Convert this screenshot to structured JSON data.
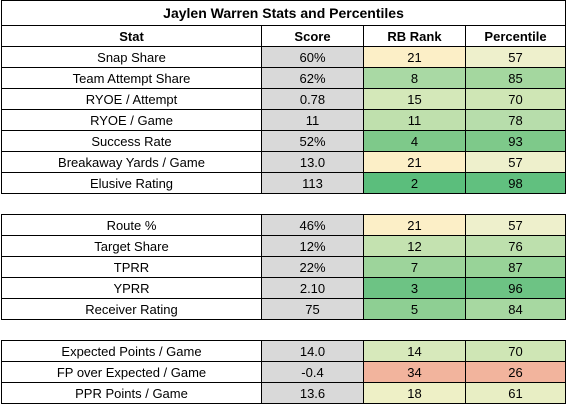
{
  "title": "Jaylen Warren Stats and Percentiles",
  "headers": [
    "Stat",
    "Score",
    "RB Rank",
    "Percentile"
  ],
  "groups": [
    [
      {
        "stat": "Snap Share",
        "score": "60%",
        "rank": "21",
        "pct": "57",
        "rank_bg": "#fcefc7",
        "pct_bg": "#eef0cc"
      },
      {
        "stat": "Team Attempt Share",
        "score": "62%",
        "rank": "8",
        "pct": "85",
        "rank_bg": "#a9d9a4",
        "pct_bg": "#a4d79f"
      },
      {
        "stat": "RYOE / Attempt",
        "score": "0.78",
        "rank": "15",
        "pct": "70",
        "rank_bg": "#d4e8b9",
        "pct_bg": "#cfe6b5"
      },
      {
        "stat": "RYOE / Game",
        "score": "11",
        "rank": "11",
        "pct": "78",
        "rank_bg": "#bfe0ad",
        "pct_bg": "#b7ddab"
      },
      {
        "stat": "Success Rate",
        "score": "52%",
        "rank": "4",
        "pct": "93",
        "rank_bg": "#7ec98a",
        "pct_bg": "#7ec98a"
      },
      {
        "stat": "Breakaway Yards / Game",
        "score": "13.0",
        "rank": "21",
        "pct": "57",
        "rank_bg": "#fcefc7",
        "pct_bg": "#eef0cc"
      },
      {
        "stat": "Elusive Rating",
        "score": "113",
        "rank": "2",
        "pct": "98",
        "rank_bg": "#5bbe7c",
        "pct_bg": "#61c07f"
      }
    ],
    [
      {
        "stat": "Route %",
        "score": "46%",
        "rank": "21",
        "pct": "57",
        "rank_bg": "#fcefc7",
        "pct_bg": "#eef0cc"
      },
      {
        "stat": "Target Share",
        "score": "12%",
        "rank": "12",
        "pct": "76",
        "rank_bg": "#c4e2b0",
        "pct_bg": "#bde0ad"
      },
      {
        "stat": "TPRR",
        "score": "22%",
        "rank": "7",
        "pct": "87",
        "rank_bg": "#9dd49b",
        "pct_bg": "#98d398"
      },
      {
        "stat": "YPRR",
        "score": "2.10",
        "rank": "3",
        "pct": "96",
        "rank_bg": "#6dc384",
        "pct_bg": "#6dc384"
      },
      {
        "stat": "Receiver Rating",
        "score": "75",
        "rank": "5",
        "pct": "84",
        "rank_bg": "#8ecf93",
        "pct_bg": "#a7d8a1"
      }
    ],
    [
      {
        "stat": "Expected Points / Game",
        "score": "14.0",
        "rank": "14",
        "pct": "70",
        "rank_bg": "#d7e9bb",
        "pct_bg": "#cfe6b5"
      },
      {
        "stat": "FP over Expected / Game",
        "score": "-0.4",
        "rank": "34",
        "pct": "26",
        "rank_bg": "#f2b49d",
        "pct_bg": "#f2b49d"
      },
      {
        "stat": "PPR Points / Game",
        "score": "13.6",
        "rank": "18",
        "pct": "61",
        "rank_bg": "#eef0c6",
        "pct_bg": "#e8eec4"
      }
    ]
  ]
}
